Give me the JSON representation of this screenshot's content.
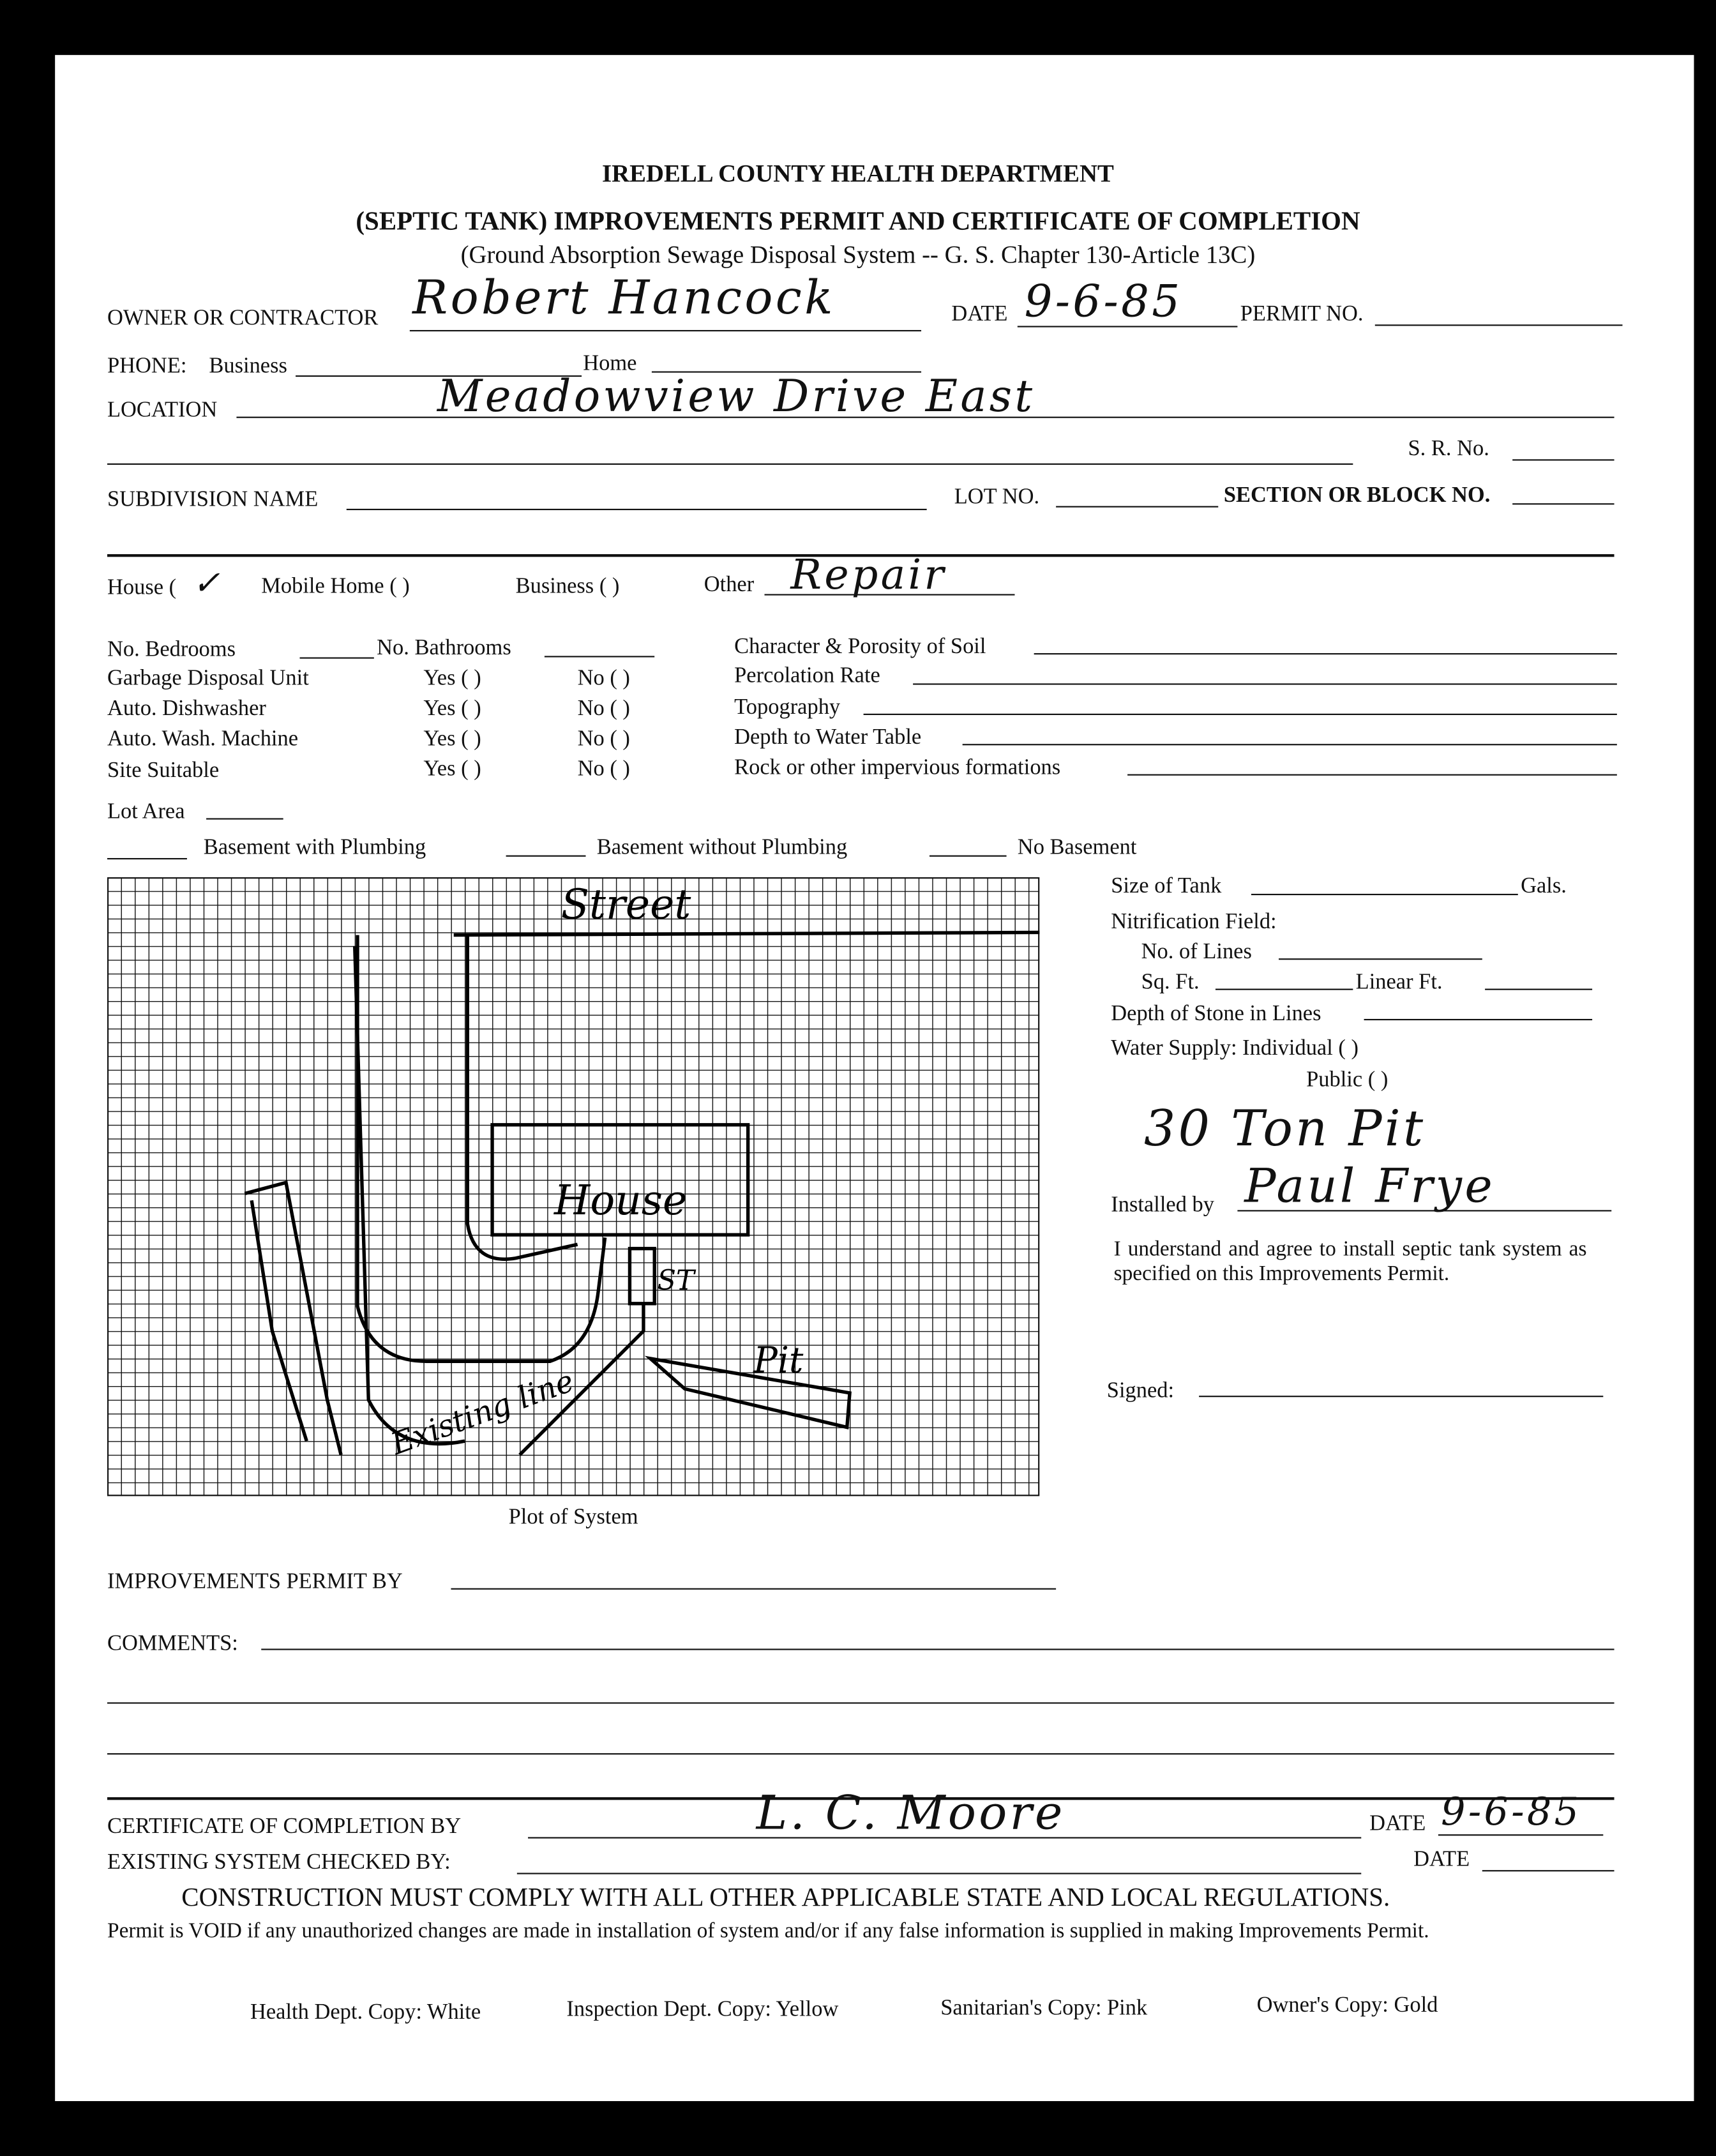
{
  "header": {
    "agency": "IREDELL COUNTY HEALTH DEPARTMENT",
    "title": "(SEPTIC TANK) IMPROVEMENTS PERMIT AND CERTIFICATE OF COMPLETION",
    "subtitle": "(Ground Absorption Sewage Disposal System -- G. S. Chapter 130-Article 13C)"
  },
  "fields": {
    "owner_label": "OWNER OR CONTRACTOR",
    "owner_value": "Robert Hancock",
    "date_label": "DATE",
    "date_value": "9-6-85",
    "permit_label": "PERMIT NO.",
    "phone_label": "PHONE:",
    "business_label": "Business",
    "home_label": "Home",
    "location_label": "LOCATION",
    "location_value": "Meadowview Drive East",
    "sr_label": "S. R. No.",
    "subdivision_label": "SUBDIVISION NAME",
    "lot_label": "LOT NO.",
    "section_label": "SECTION OR BLOCK NO."
  },
  "type": {
    "house_label": "House (",
    "house_mark": "✓",
    "mobile_label": "Mobile Home (  )",
    "business_label": "Business (  )",
    "other_label": "Other",
    "other_value": "Repair"
  },
  "details": {
    "bedrooms": "No. Bedrooms",
    "bathrooms": "No. Bathrooms",
    "rows": [
      {
        "label": "Garbage Disposal Unit",
        "yes": "Yes  (  )",
        "no": "No    (  )"
      },
      {
        "label": "Auto. Dishwasher",
        "yes": "Yes  (  )",
        "no": "No    (  )"
      },
      {
        "label": "Auto. Wash. Machine",
        "yes": "Yes  (  )",
        "no": "No    (  )"
      },
      {
        "label": "Site Suitable",
        "yes": "Yes  (  )",
        "no": "No    (  )"
      }
    ],
    "soil": [
      "Character & Porosity of Soil",
      "Percolation Rate",
      "Topography",
      "Depth to Water Table",
      "Rock or other impervious formations"
    ],
    "lot_area": "Lot Area",
    "basement_with": "Basement with Plumbing",
    "basement_without": "Basement without Plumbing",
    "no_basement": "No Basement"
  },
  "plot": {
    "caption": "Plot of System",
    "street": "Street",
    "house": "House",
    "st": "ST",
    "pit": "Pit",
    "existing": "Existing line"
  },
  "tank": {
    "size_label": "Size of Tank",
    "gals": "Gals.",
    "nitrification": "Nitrification Field:",
    "lines": "No. of Lines",
    "sqft": "Sq. Ft.",
    "linear": "Linear Ft.",
    "stone": "Depth of Stone in Lines",
    "water": "Water Supply: Individual   (   )",
    "public": "Public          (   )",
    "note_value": "30 Ton Pit",
    "installed_label": "Installed by",
    "installed_value": "Paul Frye",
    "agreement": "I understand and agree to install septic tank system as specified on this Improvements Permit.",
    "signed_label": "Signed:"
  },
  "footer": {
    "improvements_by": "IMPROVEMENTS PERMIT BY",
    "comments": "COMMENTS:",
    "certificate_by": "CERTIFICATE OF COMPLETION BY",
    "certificate_signature": "L. C. Moore",
    "date_label": "DATE",
    "date_value": "9-6-85",
    "existing_checked": "EXISTING SYSTEM CHECKED BY:",
    "date2_label": "DATE",
    "comply": "CONSTRUCTION MUST COMPLY WITH ALL OTHER APPLICABLE STATE AND LOCAL REGULATIONS.",
    "void": "Permit is VOID if any unauthorized changes are made in installation of system and/or if any false information is supplied in making Improvements Permit.",
    "copies": [
      "Health Dept. Copy: White",
      "Inspection Dept. Copy: Yellow",
      "Sanitarian's Copy: Pink",
      "Owner's Copy: Gold"
    ]
  }
}
